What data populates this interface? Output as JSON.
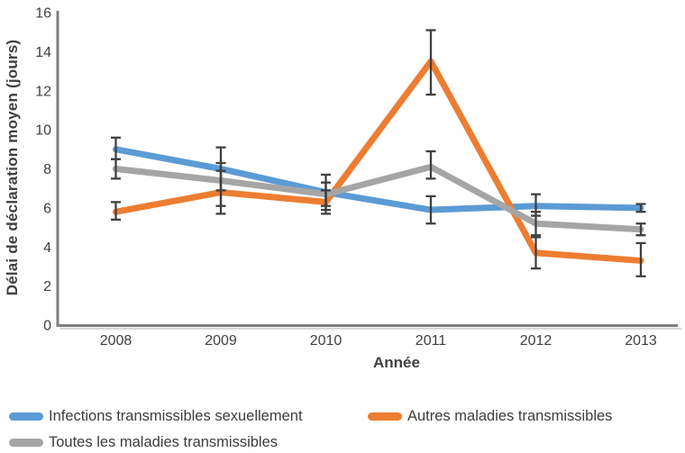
{
  "figure": {
    "y_axis_title": "Délai de déclaration moyen (jours)",
    "x_axis_title": "Année"
  },
  "legend": {
    "items": [
      {
        "label": "Infections transmissibles sexuellement",
        "color": "#5B9BD5"
      },
      {
        "label": "Autres maladies transmissibles",
        "color": "#ED7D31"
      },
      {
        "label": "Toutes les maladies transmissibles",
        "color": "#A5A5A5"
      }
    ]
  },
  "chart_data": {
    "type": "line",
    "title": "",
    "xlabel": "Année",
    "ylabel": "Délai de déclaration moyen (jours)",
    "categories": [
      "2008",
      "2009",
      "2010",
      "2011",
      "2012",
      "2013"
    ],
    "ylim": [
      0,
      16
    ],
    "y_ticks": [
      0,
      2,
      4,
      6,
      8,
      10,
      12,
      14,
      16
    ],
    "grid": false,
    "legend_position": "bottom",
    "error_bars": true,
    "axis_color": "#7f7f7f",
    "axis_shadow_color": "#d4d4d4",
    "error_bar_color": "#404040",
    "tick_label_color": "#404040",
    "series": [
      {
        "name": "Infections transmissibles sexuellement",
        "color": "#5B9BD5",
        "values": [
          9.0,
          8.0,
          6.8,
          5.9,
          6.1,
          6.0
        ],
        "error_low": [
          8.5,
          6.9,
          5.9,
          5.2,
          5.6,
          5.8
        ],
        "error_high": [
          9.6,
          9.1,
          7.7,
          6.6,
          6.7,
          6.2
        ]
      },
      {
        "name": "Autres maladies transmissibles",
        "color": "#ED7D31",
        "values": [
          5.8,
          6.8,
          6.3,
          13.5,
          3.7,
          3.3
        ],
        "error_low": [
          5.4,
          5.7,
          5.7,
          11.8,
          2.9,
          2.5
        ],
        "error_high": [
          6.3,
          7.9,
          6.9,
          15.1,
          4.5,
          4.2
        ]
      },
      {
        "name": "Toutes les maladies transmissibles",
        "color": "#A5A5A5",
        "values": [
          8.0,
          7.4,
          6.7,
          8.1,
          5.2,
          4.9
        ],
        "error_low": [
          7.5,
          6.1,
          6.1,
          7.5,
          4.6,
          4.6
        ],
        "error_high": [
          8.5,
          8.3,
          7.3,
          8.9,
          5.8,
          5.2
        ]
      }
    ]
  }
}
